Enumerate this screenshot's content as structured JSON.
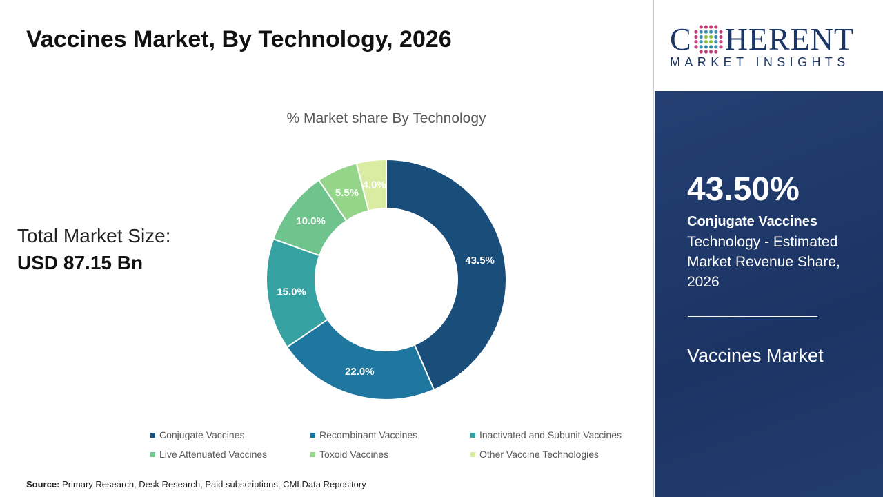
{
  "title": "Vaccines Market, By Technology, 2026",
  "total_market": {
    "label": "Total Market Size:",
    "value": "USD 87.15 Bn"
  },
  "source": {
    "label": "Source:",
    "text": "Primary Research, Desk Research, Paid subscriptions, CMI Data Repository"
  },
  "logo": {
    "top": "COHERENT",
    "bottom": "MARKET INSIGHTS"
  },
  "highlight": {
    "percent": "43.50%",
    "segment": "Conjugate Vaccines",
    "description": "Technology - Estimated Market Revenue Share, 2026",
    "market": "Vaccines Market"
  },
  "chart_data": {
    "type": "donut",
    "title": "% Market share By Technology",
    "categories": [
      "Conjugate Vaccines",
      "Recombinant Vaccines",
      "Inactivated and Subunit Vaccines",
      "Live Attenuated Vaccines",
      "Toxoid Vaccines",
      "Other Vaccine Technologies"
    ],
    "values": [
      43.5,
      22.0,
      15.0,
      10.0,
      5.5,
      4.0
    ],
    "labels": [
      "43.5%",
      "22.0%",
      "15.0%",
      "10.0%",
      "5.5%",
      "4.0%"
    ],
    "colors": [
      "#1a4e7a",
      "#1f77a0",
      "#35a1a0",
      "#6fc48d",
      "#94d58a",
      "#d9eca2"
    ],
    "legend": "bottom"
  }
}
